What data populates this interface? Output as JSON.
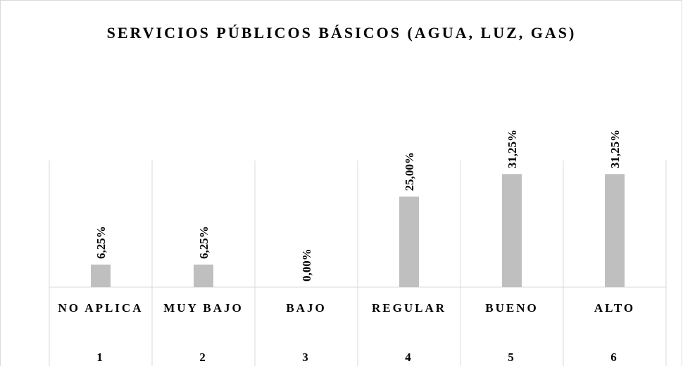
{
  "chart_data": {
    "type": "bar",
    "title": "SERVICIOS PÚBLICOS BÁSICOS (AGUA, LUZ, GAS)",
    "categories": [
      "NO APLICA",
      "MUY BAJO",
      "BAJO",
      "REGULAR",
      "BUENO",
      "ALTO"
    ],
    "category_codes": [
      "1",
      "2",
      "3",
      "4",
      "5",
      "6"
    ],
    "values": [
      6.25,
      6.25,
      0,
      25,
      31.25,
      31.25
    ],
    "value_labels": [
      "6,25%",
      "6,25%",
      "0,00%",
      "25,00%",
      "31,25%",
      "31,25%"
    ],
    "color": "#bfbfbf",
    "ylim": [
      0,
      35
    ]
  }
}
